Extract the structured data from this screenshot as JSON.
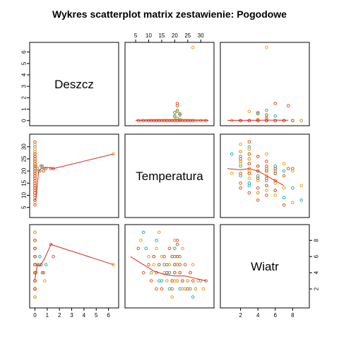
{
  "title": "Wykres scatterplot matrix zestawienie: Pogodowe",
  "colors": {
    "points": [
      "#1fb5b0",
      "#e8a317",
      "#e25822"
    ],
    "smooth": "#d62728"
  },
  "chart_data": {
    "type": "scatter",
    "variables": [
      "Deszcz",
      "Temperatura",
      "Wiatr"
    ],
    "axes": {
      "Deszcz": {
        "range": [
          -0.2,
          6.6
        ],
        "ticks": [
          0,
          1,
          2,
          3,
          4,
          5,
          6
        ],
        "tick_labels": [
          "0",
          "1",
          "2",
          "3",
          "4",
          "5",
          "6"
        ]
      },
      "Temperatura": {
        "range": [
          2,
          34
        ],
        "ticks": [
          5,
          10,
          15,
          20,
          25,
          30
        ],
        "tick_labels": [
          "5",
          "10",
          "15",
          "20",
          "25",
          "30"
        ]
      },
      "Wiatr": {
        "range": [
          0,
          9.6
        ],
        "ticks": [
          2,
          4,
          6,
          8
        ],
        "tick_labels": [
          "2",
          "4",
          "6",
          "8"
        ]
      }
    },
    "tick_placement": {
      "Deszcz": {
        "row": "left",
        "col": "bottom"
      },
      "Temperatura": {
        "row": "left",
        "col": "top"
      },
      "Wiatr": {
        "row": "right",
        "col": "bottom"
      }
    },
    "smooth_lines": {
      "Temperatura|Deszcz": [
        [
          0,
          8
        ],
        [
          0.1,
          9
        ],
        [
          0.3,
          20
        ],
        [
          0.5,
          21
        ],
        [
          1.0,
          21.5
        ],
        [
          1.5,
          21
        ],
        [
          6.4,
          27
        ]
      ],
      "Wiatr|Deszcz": [
        [
          0,
          3.2
        ],
        [
          0.2,
          5
        ],
        [
          0.4,
          4.8
        ],
        [
          0.8,
          5.8
        ],
        [
          1.3,
          7.5
        ],
        [
          6.4,
          5
        ]
      ],
      "Deszcz|Temperatura": [
        [
          5,
          0.02
        ],
        [
          10,
          0.02
        ],
        [
          15,
          0.03
        ],
        [
          20,
          0.04
        ],
        [
          25,
          0.03
        ],
        [
          30,
          0.02
        ],
        [
          33,
          0.02
        ]
      ],
      "Wiatr|Temperatura": [
        [
          3,
          6
        ],
        [
          8,
          5
        ],
        [
          12,
          4.2
        ],
        [
          16,
          3.8
        ],
        [
          20,
          3.6
        ],
        [
          24,
          3.6
        ],
        [
          28,
          3.3
        ],
        [
          32,
          3.0
        ]
      ],
      "Deszcz|Wiatr": [
        [
          0.5,
          0.02
        ],
        [
          2,
          0.02
        ],
        [
          4,
          0.03
        ],
        [
          6,
          0.04
        ],
        [
          7.5,
          0.03
        ]
      ],
      "Temperatura|Wiatr": [
        [
          0.5,
          21
        ],
        [
          2,
          20.5
        ],
        [
          3,
          21
        ],
        [
          4,
          20
        ],
        [
          5,
          18
        ],
        [
          6,
          16
        ],
        [
          7,
          14
        ]
      ]
    },
    "series": [
      {
        "name": "",
        "color": "#1fb5b0",
        "points": [
          [
            0,
            15,
            3
          ],
          [
            0,
            18,
            4
          ],
          [
            0,
            20,
            5
          ],
          [
            0,
            22,
            2
          ],
          [
            0,
            12,
            6
          ],
          [
            0,
            25,
            3
          ],
          [
            0,
            9,
            7
          ],
          [
            0,
            28,
            2
          ],
          [
            0,
            17,
            4
          ],
          [
            0,
            21,
            3
          ],
          [
            0,
            14,
            5
          ],
          [
            0,
            24,
            2
          ],
          [
            0,
            19,
            6
          ],
          [
            0,
            11,
            4
          ],
          [
            0,
            23,
            3
          ],
          [
            0,
            16,
            5
          ],
          [
            0,
            27,
            1
          ],
          [
            0,
            13,
            8
          ],
          [
            0,
            20,
            4
          ],
          [
            0,
            26,
            2
          ],
          [
            0.2,
            21,
            5
          ],
          [
            0.4,
            20,
            6
          ],
          [
            0.6,
            22,
            4
          ],
          [
            0.9,
            21,
            5
          ],
          [
            0,
            30,
            3
          ],
          [
            0,
            8,
            9
          ],
          [
            0,
            22,
            6
          ],
          [
            0,
            18,
            2
          ],
          [
            0,
            14,
            3
          ],
          [
            0,
            20,
            7
          ]
        ]
      },
      {
        "name": "",
        "color": "#e8a317",
        "points": [
          [
            0,
            16,
            4
          ],
          [
            0,
            19,
            3
          ],
          [
            0,
            21,
            5
          ],
          [
            0,
            23,
            2
          ],
          [
            0,
            13,
            7
          ],
          [
            0,
            26,
            4
          ],
          [
            0,
            10,
            6
          ],
          [
            0,
            29,
            3
          ],
          [
            0,
            18,
            5
          ],
          [
            0,
            22,
            4
          ],
          [
            0,
            15,
            6
          ],
          [
            0,
            25,
            3
          ],
          [
            0,
            20,
            8
          ],
          [
            0,
            12,
            5
          ],
          [
            0,
            24,
            2
          ],
          [
            0,
            17,
            3
          ],
          [
            0,
            28,
            2
          ],
          [
            0,
            14,
            9
          ],
          [
            0,
            21,
            6
          ],
          [
            0,
            27,
            3
          ],
          [
            0.1,
            22,
            4
          ],
          [
            0.3,
            20,
            5
          ],
          [
            0.8,
            21,
            3
          ],
          [
            6.4,
            27,
            5
          ],
          [
            0,
            31,
            2
          ],
          [
            0,
            7,
            8
          ],
          [
            0,
            23,
            7
          ],
          [
            0,
            19,
            1
          ],
          [
            0,
            11,
            4
          ],
          [
            0,
            20,
            3
          ]
        ]
      },
      {
        "name": "",
        "color": "#e25822",
        "points": [
          [
            0,
            14,
            5
          ],
          [
            0,
            17,
            4
          ],
          [
            0,
            19,
            2
          ],
          [
            0,
            21,
            6
          ],
          [
            0,
            11,
            3
          ],
          [
            0,
            24,
            5
          ],
          [
            0,
            8,
            4
          ],
          [
            0,
            27,
            3
          ],
          [
            0,
            16,
            6
          ],
          [
            0,
            20,
            5
          ],
          [
            0,
            13,
            4
          ],
          [
            0,
            23,
            3
          ],
          [
            0,
            18,
            7
          ],
          [
            0,
            10,
            5
          ],
          [
            0,
            22,
            4
          ],
          [
            0,
            15,
            2
          ],
          [
            0,
            26,
            4
          ],
          [
            0,
            12,
            6
          ],
          [
            0,
            19,
            3
          ],
          [
            0,
            25,
            2
          ],
          [
            0.5,
            22,
            5
          ],
          [
            1.3,
            21,
            7.5
          ],
          [
            1.5,
            21,
            6
          ],
          [
            0.7,
            20,
            4
          ],
          [
            0,
            32,
            3
          ],
          [
            0,
            6,
            7
          ],
          [
            0,
            21,
            8
          ],
          [
            0,
            17,
            5
          ],
          [
            0,
            13,
            2
          ],
          [
            0,
            19,
            6
          ]
        ]
      }
    ]
  }
}
